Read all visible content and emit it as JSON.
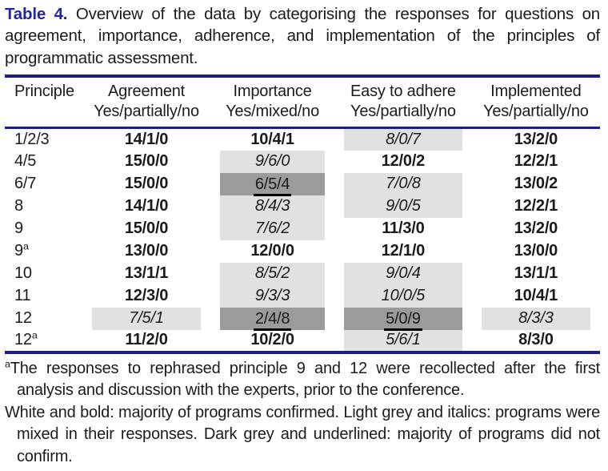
{
  "caption": {
    "label": "Table 4.",
    "text": "Overview of the data by categorising the responses for questions on agreement, importance, adherence, and implementation of the principles of programmatic assessment."
  },
  "table": {
    "columns": [
      {
        "label": "Principle",
        "sub": ""
      },
      {
        "label": "Agreement",
        "sub": "Yes/partially/no"
      },
      {
        "label": "Importance",
        "sub": "Yes/mixed/no"
      },
      {
        "label": "Easy to adhere",
        "sub": "Yes/partially/no"
      },
      {
        "label": "Implemented",
        "sub": "Yes/partially/no"
      }
    ],
    "category_legend": {
      "confirmed": "White and bold: majority of programs confirmed",
      "mixed": "Light grey and italics: programs were mixed in their responses",
      "not_confirmed": "Dark grey and underlined: majority of programs did not confirm"
    },
    "rows": [
      {
        "principle": "1/2/3",
        "sup": "",
        "cells": [
          {
            "value": "14/1/0",
            "category": "confirmed"
          },
          {
            "value": "10/4/1",
            "category": "confirmed"
          },
          {
            "value": "8/0/7",
            "category": "mixed"
          },
          {
            "value": "13/2/0",
            "category": "confirmed"
          }
        ]
      },
      {
        "principle": "4/5",
        "sup": "",
        "cells": [
          {
            "value": "15/0/0",
            "category": "confirmed"
          },
          {
            "value": "9/6/0",
            "category": "mixed"
          },
          {
            "value": "12/0/2",
            "category": "confirmed"
          },
          {
            "value": "12/2/1",
            "category": "confirmed"
          }
        ]
      },
      {
        "principle": "6/7",
        "sup": "",
        "cells": [
          {
            "value": "15/0/0",
            "category": "confirmed"
          },
          {
            "value": "6/5/4",
            "category": "not_confirmed"
          },
          {
            "value": "7/0/8",
            "category": "mixed"
          },
          {
            "value": "13/0/2",
            "category": "confirmed"
          }
        ]
      },
      {
        "principle": "8",
        "sup": "",
        "cells": [
          {
            "value": "14/1/0",
            "category": "confirmed"
          },
          {
            "value": "8/4/3",
            "category": "mixed"
          },
          {
            "value": "9/0/5",
            "category": "mixed"
          },
          {
            "value": "12/2/1",
            "category": "confirmed"
          }
        ]
      },
      {
        "principle": "9",
        "sup": "",
        "cells": [
          {
            "value": "15/0/0",
            "category": "confirmed"
          },
          {
            "value": "7/6/2",
            "category": "mixed"
          },
          {
            "value": "11/3/0",
            "category": "confirmed"
          },
          {
            "value": "13/2/0",
            "category": "confirmed"
          }
        ]
      },
      {
        "principle": "9",
        "sup": "a",
        "cells": [
          {
            "value": "13/0/0",
            "category": "confirmed"
          },
          {
            "value": "12/0/0",
            "category": "confirmed"
          },
          {
            "value": "12/1/0",
            "category": "confirmed"
          },
          {
            "value": "13/0/0",
            "category": "confirmed"
          }
        ]
      },
      {
        "principle": "10",
        "sup": "",
        "cells": [
          {
            "value": "13/1/1",
            "category": "confirmed"
          },
          {
            "value": "8/5/2",
            "category": "mixed"
          },
          {
            "value": "9/0/4",
            "category": "mixed"
          },
          {
            "value": "13/1/1",
            "category": "confirmed"
          }
        ]
      },
      {
        "principle": "11",
        "sup": "",
        "cells": [
          {
            "value": "12/3/0",
            "category": "confirmed"
          },
          {
            "value": "9/3/3",
            "category": "mixed"
          },
          {
            "value": "10/0/5",
            "category": "mixed"
          },
          {
            "value": "10/4/1",
            "category": "confirmed"
          }
        ]
      },
      {
        "principle": "12",
        "sup": "",
        "cells": [
          {
            "value": "7/5/1",
            "category": "mixed"
          },
          {
            "value": "2/4/8",
            "category": "not_confirmed"
          },
          {
            "value": "5/0/9",
            "category": "not_confirmed"
          },
          {
            "value": "8/3/3",
            "category": "mixed"
          }
        ]
      },
      {
        "principle": "12",
        "sup": "a",
        "cells": [
          {
            "value": "11/2/0",
            "category": "confirmed"
          },
          {
            "value": "10/2/0",
            "category": "confirmed"
          },
          {
            "value": "5/6/1",
            "category": "mixed"
          },
          {
            "value": "8/3/0",
            "category": "confirmed"
          }
        ]
      }
    ]
  },
  "footnotes": [
    {
      "marker": "a",
      "text": "The responses to rephrased principle 9 and 12 were recollected after the first analysis and discussion with the experts, prior to the conference."
    },
    {
      "marker": "",
      "text": "White and bold: majority of programs confirmed. Light grey and italics: programs were mixed in their responses. Dark grey and underlined: majority of programs did not confirm."
    }
  ],
  "colors": {
    "navy_rule": "#1e1e7e",
    "caption_label": "#2626a0",
    "light_grey_cell": "#e1e1e1",
    "dark_grey_cell": "#9b9b9e",
    "text": "#1b1b1b"
  }
}
